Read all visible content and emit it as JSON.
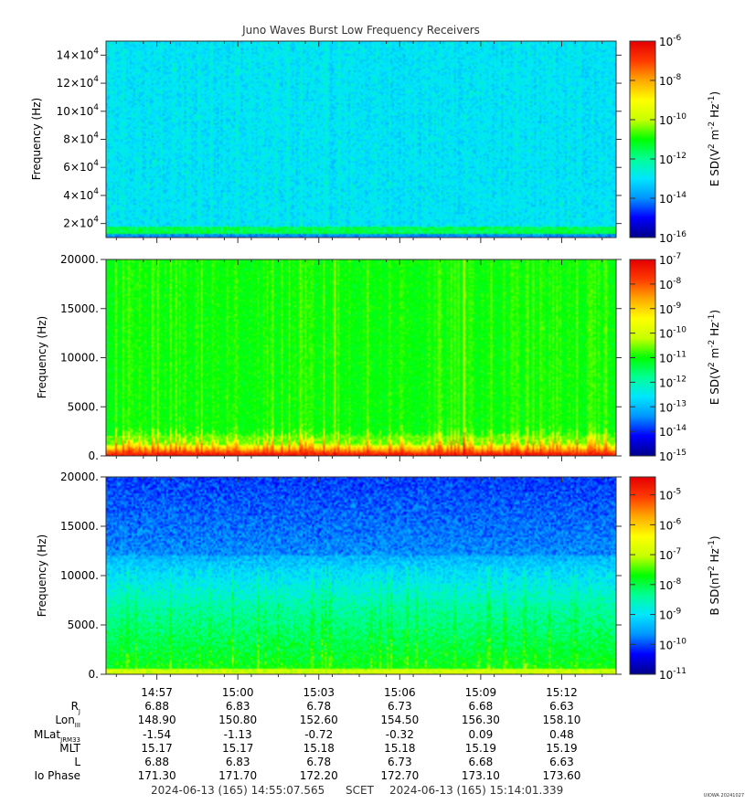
{
  "title": "Juno Waves Burst Low Frequency Receivers",
  "chart_data": [
    {
      "type": "heatmap",
      "ylabel": "Frequency (Hz)",
      "ylim": [
        10000,
        150000
      ],
      "yticks": [
        {
          "value": 20000,
          "mant": "2×10",
          "exp": "4"
        },
        {
          "value": 40000,
          "mant": "4×10",
          "exp": "4"
        },
        {
          "value": 60000,
          "mant": "6×10",
          "exp": "4"
        },
        {
          "value": 80000,
          "mant": "8×10",
          "exp": "4"
        },
        {
          "value": 100000,
          "mant": "10×10",
          "exp": "4"
        },
        {
          "value": 120000,
          "mant": "12×10",
          "exp": "4"
        },
        {
          "value": 140000,
          "mant": "14×10",
          "exp": "4"
        }
      ],
      "colorbar": {
        "label_main": "E SD(V",
        "label_full": "E SD(V² m⁻² Hz⁻¹)",
        "scale": "log",
        "range": [
          -16,
          -6
        ],
        "ticks": [
          -16,
          -14,
          -12,
          -10,
          -8,
          -6
        ]
      }
    },
    {
      "type": "heatmap",
      "ylabel": "Frequency (Hz)",
      "ylim": [
        0,
        20000
      ],
      "yticks": [
        {
          "value": 0,
          "label": "0."
        },
        {
          "value": 5000,
          "label": "5000."
        },
        {
          "value": 10000,
          "label": "10000."
        },
        {
          "value": 15000,
          "label": "15000."
        },
        {
          "value": 20000,
          "label": "20000."
        }
      ],
      "colorbar": {
        "label_full": "E SD(V² m⁻² Hz⁻¹)",
        "scale": "log",
        "range": [
          -15,
          -7
        ],
        "ticks": [
          -15,
          -14,
          -13,
          -12,
          -11,
          -10,
          -9,
          -8,
          -7
        ]
      }
    },
    {
      "type": "heatmap",
      "ylabel": "Frequency (Hz)",
      "ylim": [
        0,
        20000
      ],
      "yticks": [
        {
          "value": 0,
          "label": "0."
        },
        {
          "value": 5000,
          "label": "5000."
        },
        {
          "value": 10000,
          "label": "10000."
        },
        {
          "value": 15000,
          "label": "15000."
        },
        {
          "value": 20000,
          "label": "20000."
        }
      ],
      "colorbar": {
        "label_full": "B SD(nT² Hz⁻¹)",
        "scale": "log",
        "range": [
          -11,
          -4.4
        ],
        "ticks": [
          -11,
          -10,
          -9,
          -8,
          -7,
          -6,
          -5
        ]
      }
    }
  ],
  "time_axis": {
    "start": "14:55:07.565",
    "end": "15:14:01.339",
    "ticks": [
      "14:57",
      "15:00",
      "15:03",
      "15:06",
      "15:09",
      "15:12"
    ],
    "tick_seconds": [
      113,
      293,
      473,
      653,
      833,
      1013
    ],
    "duration_seconds": 1134
  },
  "ephemeris": {
    "labels": [
      {
        "main": "R",
        "sub": "J"
      },
      {
        "main": "Lon",
        "sub": "III"
      },
      {
        "main": "MLat",
        "sub": "JRM33"
      },
      {
        "main": "MLT",
        "sub": ""
      },
      {
        "main": "L",
        "sub": ""
      },
      {
        "main": "Io Phase",
        "sub": ""
      }
    ],
    "rows": [
      [
        "6.88",
        "6.83",
        "6.78",
        "6.73",
        "6.68",
        "6.63"
      ],
      [
        "148.90",
        "150.80",
        "152.60",
        "154.50",
        "156.30",
        "158.10"
      ],
      [
        "-1.54",
        "-1.13",
        "-0.72",
        "-0.32",
        "0.09",
        "0.48"
      ],
      [
        "15.17",
        "15.17",
        "15.18",
        "15.18",
        "15.19",
        "15.19"
      ],
      [
        "6.88",
        "6.83",
        "6.78",
        "6.73",
        "6.68",
        "6.63"
      ],
      [
        "171.30",
        "171.70",
        "172.20",
        "172.70",
        "173.10",
        "173.60"
      ]
    ]
  },
  "footer": {
    "start": "2024-06-13 (165) 14:55:07.565",
    "scet": "SCET",
    "end": "2024-06-13 (165) 15:14:01.339",
    "credit": "UIOWA 20241027"
  },
  "colors": {
    "scale": [
      "#00008c",
      "#0000ff",
      "#0096ff",
      "#00e6ff",
      "#00ff96",
      "#00ff00",
      "#c8ff00",
      "#ffff00",
      "#ffaa00",
      "#ff3c00",
      "#e60000"
    ]
  }
}
